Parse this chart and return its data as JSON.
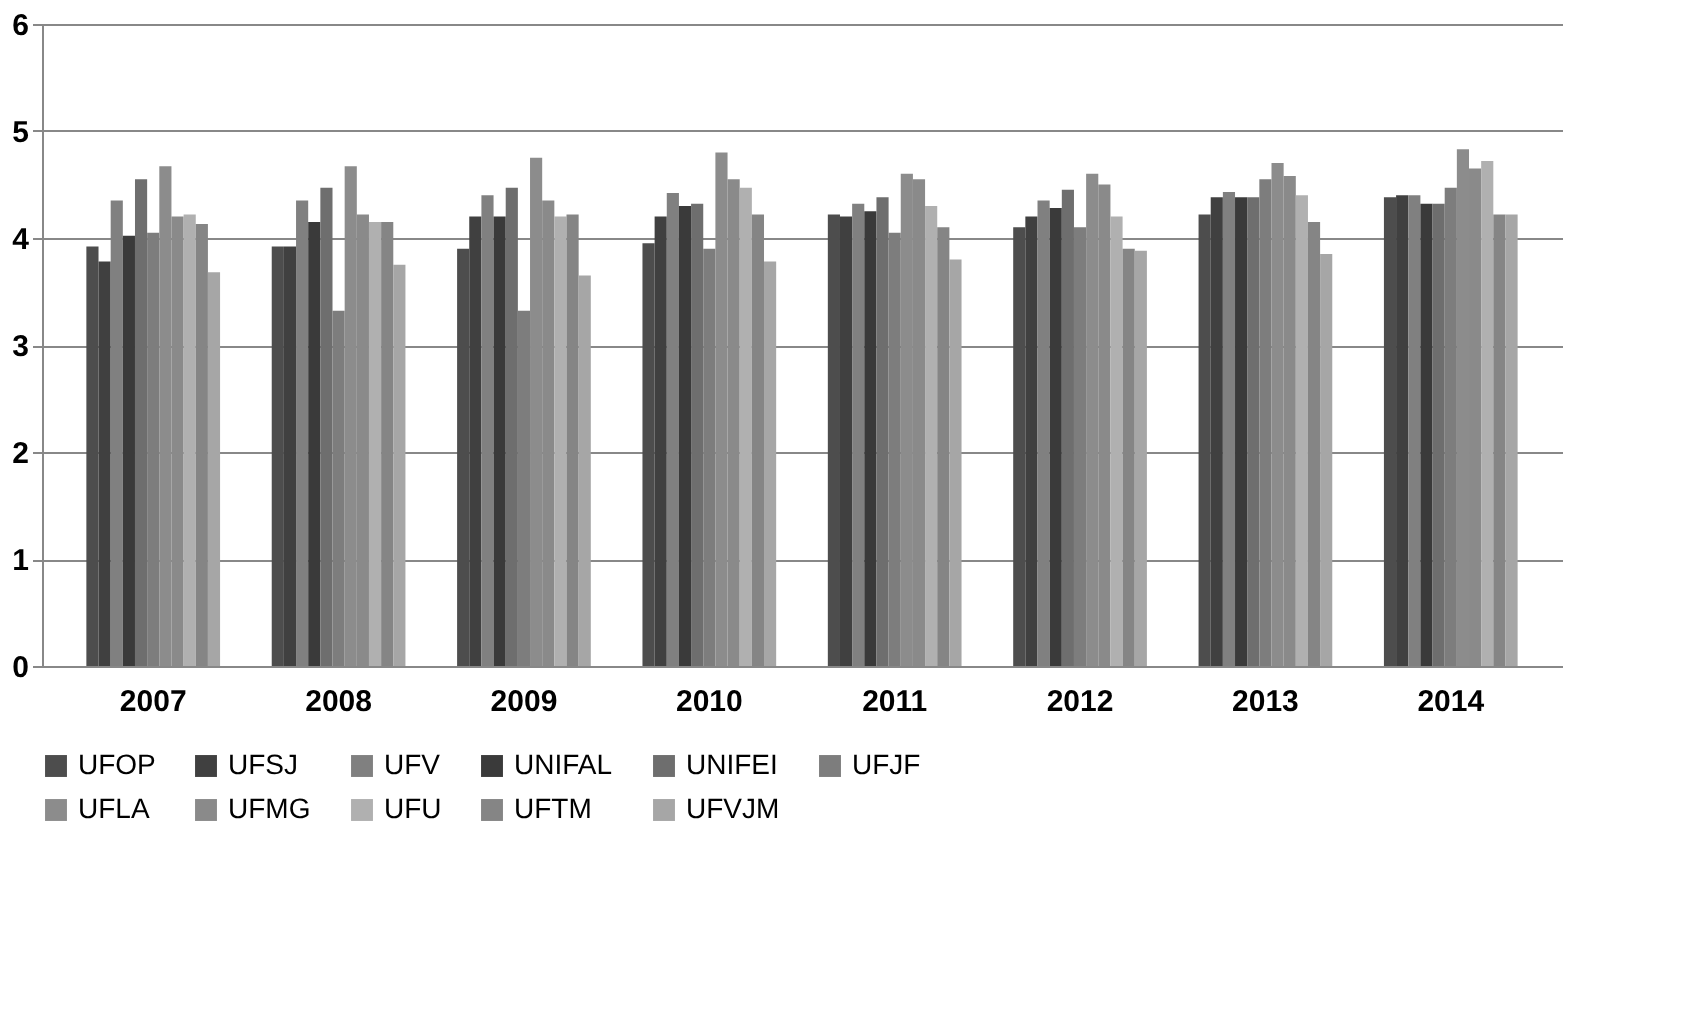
{
  "chart_data": {
    "type": "bar",
    "categories": [
      "2007",
      "2008",
      "2009",
      "2010",
      "2011",
      "2012",
      "2013",
      "2014"
    ],
    "ylim": [
      0,
      6
    ],
    "yticks": [
      0,
      1,
      2,
      3,
      4,
      5,
      6
    ],
    "grid": "y",
    "legend": "bottom",
    "series": [
      {
        "name": "UFOP",
        "color": "#4d4d4d",
        "values": [
          3.92,
          3.92,
          3.9,
          3.95,
          4.22,
          4.1,
          4.22,
          4.38
        ]
      },
      {
        "name": "UFSJ",
        "color": "#404040",
        "values": [
          3.78,
          3.92,
          4.2,
          4.2,
          4.2,
          4.2,
          4.38,
          4.4
        ]
      },
      {
        "name": "UFV",
        "color": "#808080",
        "values": [
          4.35,
          4.35,
          4.4,
          4.42,
          4.32,
          4.35,
          4.43,
          4.4
        ]
      },
      {
        "name": "UNIFAL",
        "color": "#3a3a3a",
        "values": [
          4.02,
          4.15,
          4.2,
          4.3,
          4.25,
          4.28,
          4.38,
          4.32
        ]
      },
      {
        "name": "UNIFEI",
        "color": "#6e6e6e",
        "values": [
          4.55,
          4.47,
          4.47,
          4.32,
          4.38,
          4.45,
          4.38,
          4.32
        ]
      },
      {
        "name": "UFJF",
        "color": "#7d7d7d",
        "values": [
          4.05,
          3.32,
          3.32,
          3.9,
          4.05,
          4.1,
          4.55,
          4.47
        ]
      },
      {
        "name": "UFLA",
        "color": "#8c8c8c",
        "values": [
          4.67,
          4.67,
          4.75,
          4.8,
          4.6,
          4.6,
          4.7,
          4.83
        ]
      },
      {
        "name": "UFMG",
        "color": "#8a8a8a",
        "values": [
          4.2,
          4.22,
          4.35,
          4.55,
          4.55,
          4.5,
          4.58,
          4.65
        ]
      },
      {
        "name": "UFU",
        "color": "#b0b0b0",
        "values": [
          4.22,
          4.15,
          4.2,
          4.47,
          4.3,
          4.2,
          4.4,
          4.72
        ]
      },
      {
        "name": "UFTM",
        "color": "#858585",
        "values": [
          4.13,
          4.15,
          4.22,
          4.22,
          4.1,
          3.9,
          4.15,
          4.22
        ]
      },
      {
        "name": "UFVJM",
        "color": "#a6a6a6",
        "values": [
          3.68,
          3.75,
          3.65,
          3.78,
          3.8,
          3.88,
          3.85,
          4.22
        ]
      }
    ]
  }
}
